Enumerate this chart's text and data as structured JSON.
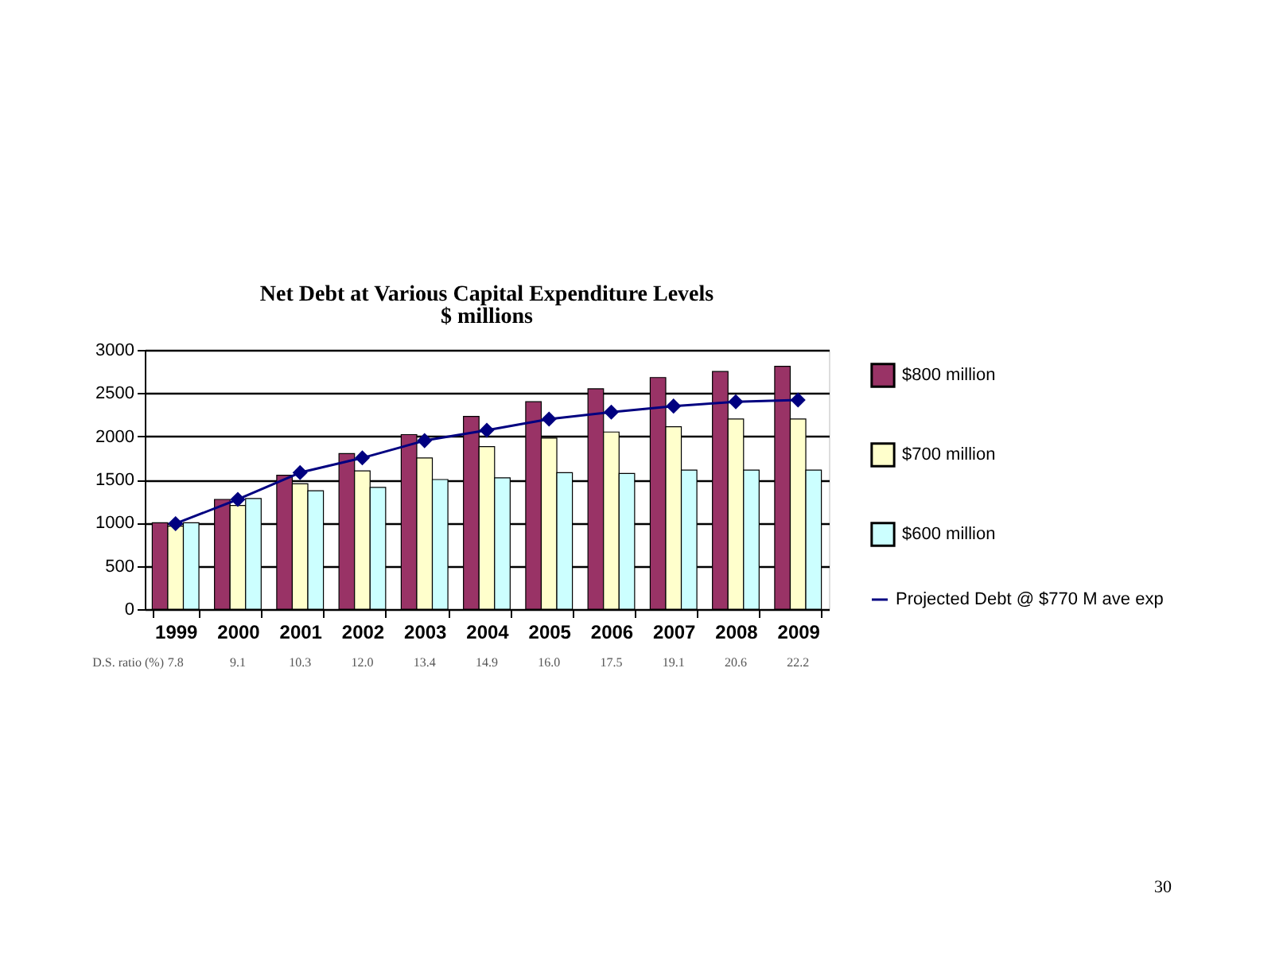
{
  "chart_data": {
    "type": "bar",
    "title": "Net Debt at Various Capital Expenditure Levels",
    "subtitle": "$ millions",
    "categories": [
      "1999",
      "2000",
      "2001",
      "2002",
      "2003",
      "2004",
      "2005",
      "2006",
      "2007",
      "2008",
      "2009"
    ],
    "series": [
      {
        "name": "$800 million",
        "color": "#993366",
        "values": [
          1000,
          1270,
          1550,
          1800,
          2020,
          2230,
          2400,
          2550,
          2680,
          2750,
          2810
        ]
      },
      {
        "name": "$700 million",
        "color": "#ffffcc",
        "values": [
          960,
          1200,
          1450,
          1600,
          1750,
          1880,
          1980,
          2050,
          2110,
          2200,
          2200
        ]
      },
      {
        "name": "$600 million",
        "color": "#ccffff",
        "values": [
          1000,
          1280,
          1370,
          1410,
          1500,
          1520,
          1580,
          1570,
          1610,
          1610,
          1610
        ]
      },
      {
        "name": "Projected Debt @ $770 M ave exp",
        "color": "#000080",
        "type": "line",
        "marker": "diamond",
        "values": [
          990,
          1270,
          1580,
          1750,
          1950,
          2070,
          2200,
          2280,
          2350,
          2400,
          2420
        ]
      }
    ],
    "ylim": [
      0,
      3000
    ],
    "yticks": [
      0,
      500,
      1000,
      1500,
      2000,
      2500,
      3000
    ],
    "grid": "y",
    "legend": "right",
    "annotations": [
      "D.S. ratio (%)",
      "7.8",
      "9.1",
      "10.3",
      "12.0",
      "13.4",
      "14.9",
      "16.0",
      "17.5",
      "19.1",
      "20.6",
      "22.2",
      "30"
    ]
  }
}
